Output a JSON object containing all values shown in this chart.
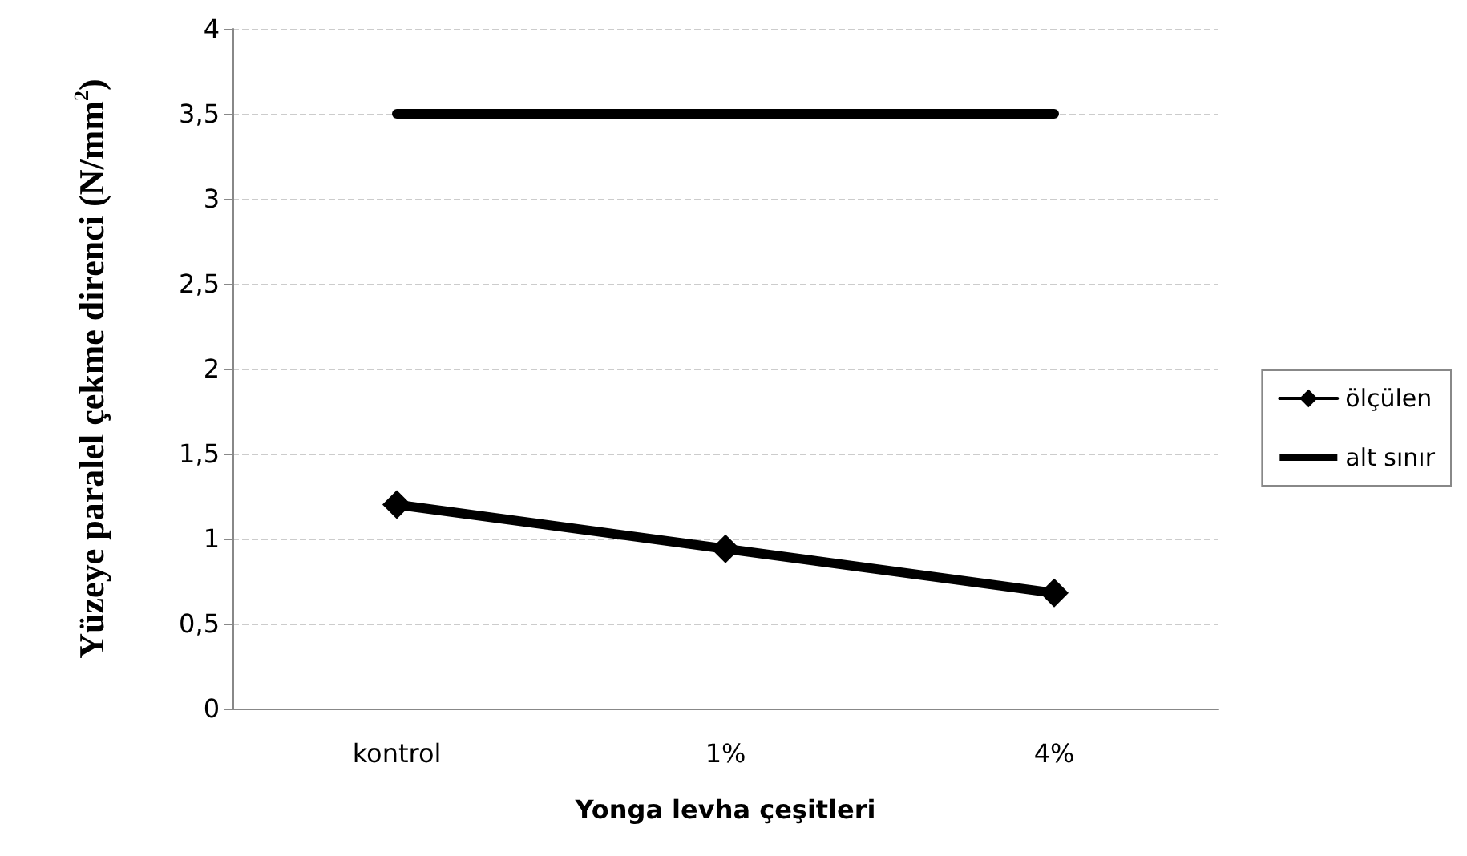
{
  "chart_data": {
    "type": "line",
    "xlabel": "Yonga levha çeşitleri",
    "ylabel": "Yüzeye paralel çekme direnci (N/mm$^{2}$)",
    "categories": [
      "kontrol",
      "1%",
      "4%"
    ],
    "series": [
      {
        "name": "ölçülen",
        "color": "#000000",
        "values": [
          1.2,
          0.94,
          0.68
        ],
        "marker": "diamond"
      },
      {
        "name": "alt sınır",
        "color": "#000000",
        "values": [
          3.5,
          3.5,
          3.5
        ],
        "marker": "none"
      }
    ],
    "ylim": [
      0,
      4
    ],
    "yticks": [
      0,
      {
        "value": 0.5,
        "label": "0,5"
      },
      1,
      {
        "value": 1.5,
        "label": "1,5"
      },
      2,
      {
        "value": 2.5,
        "label": "2,5"
      },
      3,
      {
        "value": 3.5,
        "label": "3,5"
      },
      4
    ],
    "grid": "y",
    "legend": "right"
  }
}
